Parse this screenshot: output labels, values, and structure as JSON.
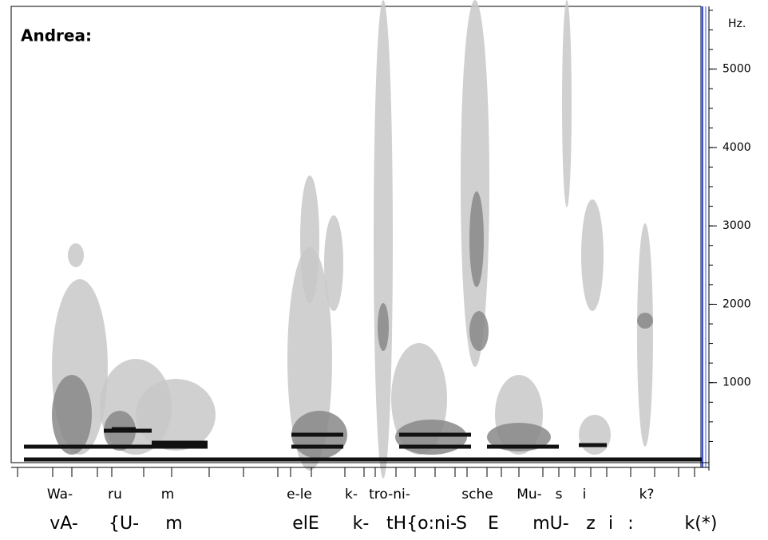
{
  "chart_data": {
    "type": "spectrogram",
    "speaker": "Andrea:",
    "ylabel": "Hz.",
    "ylim": [
      0,
      5800
    ],
    "yticks": [
      1000,
      2000,
      3000,
      4000,
      5000
    ],
    "syllables": [
      "Wa-",
      "ru",
      "m",
      "e-le",
      "k-",
      "tro-ni-",
      "sche",
      "Mu-",
      "s",
      "i",
      "k?"
    ],
    "phonemes": [
      "vA-",
      "{U-",
      "m",
      "elE",
      "k-",
      "tH{o:ni-",
      "S",
      "E",
      "mU-",
      "z",
      "i",
      ":",
      "k(*)"
    ]
  }
}
